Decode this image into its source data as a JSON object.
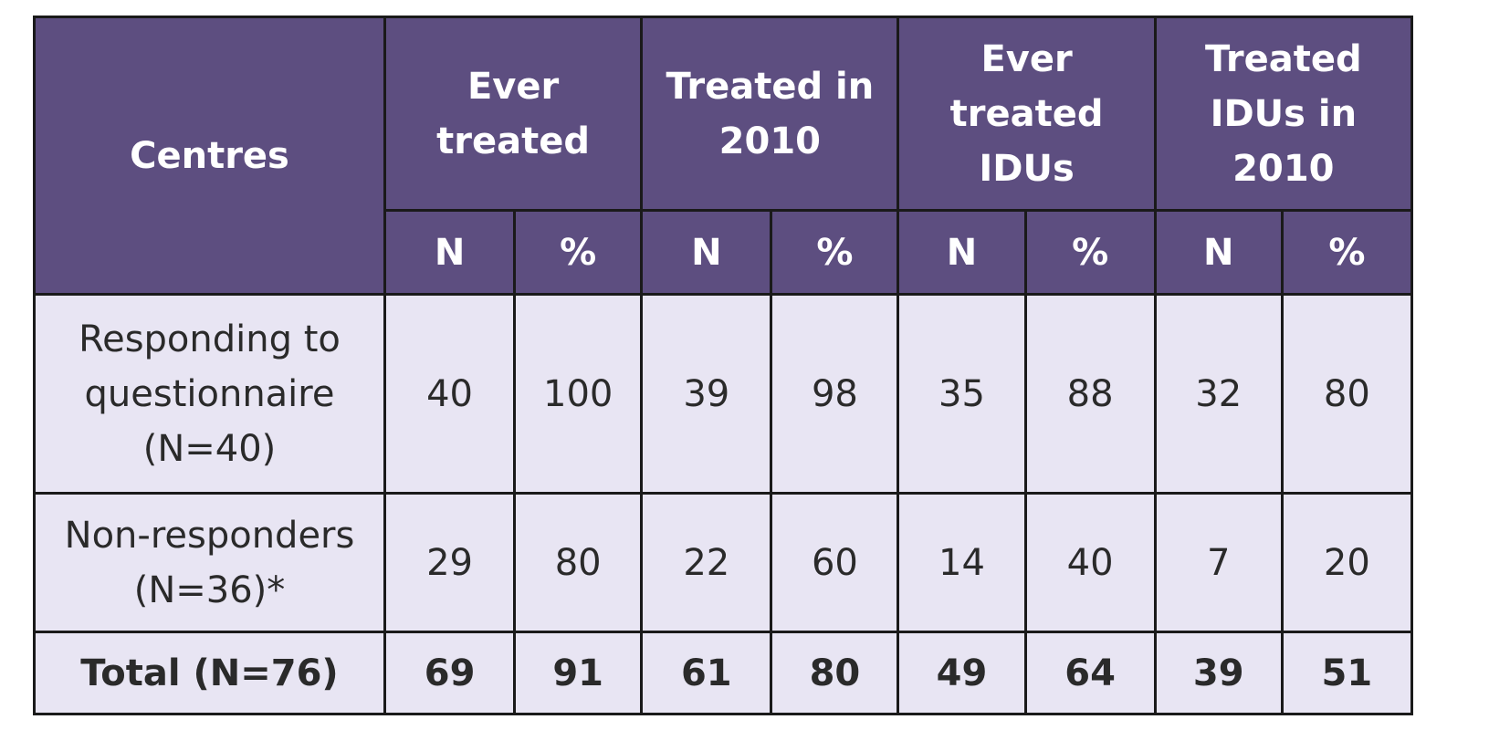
{
  "table": {
    "corner_header": "Centres",
    "groups": [
      {
        "label": "Ever treated"
      },
      {
        "label": "Treated in 2010"
      },
      {
        "label": "Ever treated IDUs"
      },
      {
        "label": "Treated IDUs in 2010"
      }
    ],
    "sub_headers": [
      "N",
      "%",
      "N",
      "%",
      "N",
      "%",
      "N",
      "%"
    ],
    "rows": [
      {
        "label": "Responding to questionnaire (N=40)",
        "cells": [
          "40",
          "100",
          "39",
          "98",
          "35",
          "88",
          "32",
          "80"
        ]
      },
      {
        "label": "Non-responders (N=36)*",
        "cells": [
          "29",
          "80",
          "22",
          "60",
          "14",
          "40",
          "7",
          "20"
        ]
      },
      {
        "label": "Total (N=76)",
        "cells": [
          "69",
          "91",
          "61",
          "80",
          "49",
          "64",
          "39",
          "51"
        ]
      }
    ]
  },
  "colors": {
    "header_bg": "#5d4e80",
    "header_text": "#ffffff",
    "body_bg": "#e8e5f3",
    "border": "#1a1a1a"
  }
}
